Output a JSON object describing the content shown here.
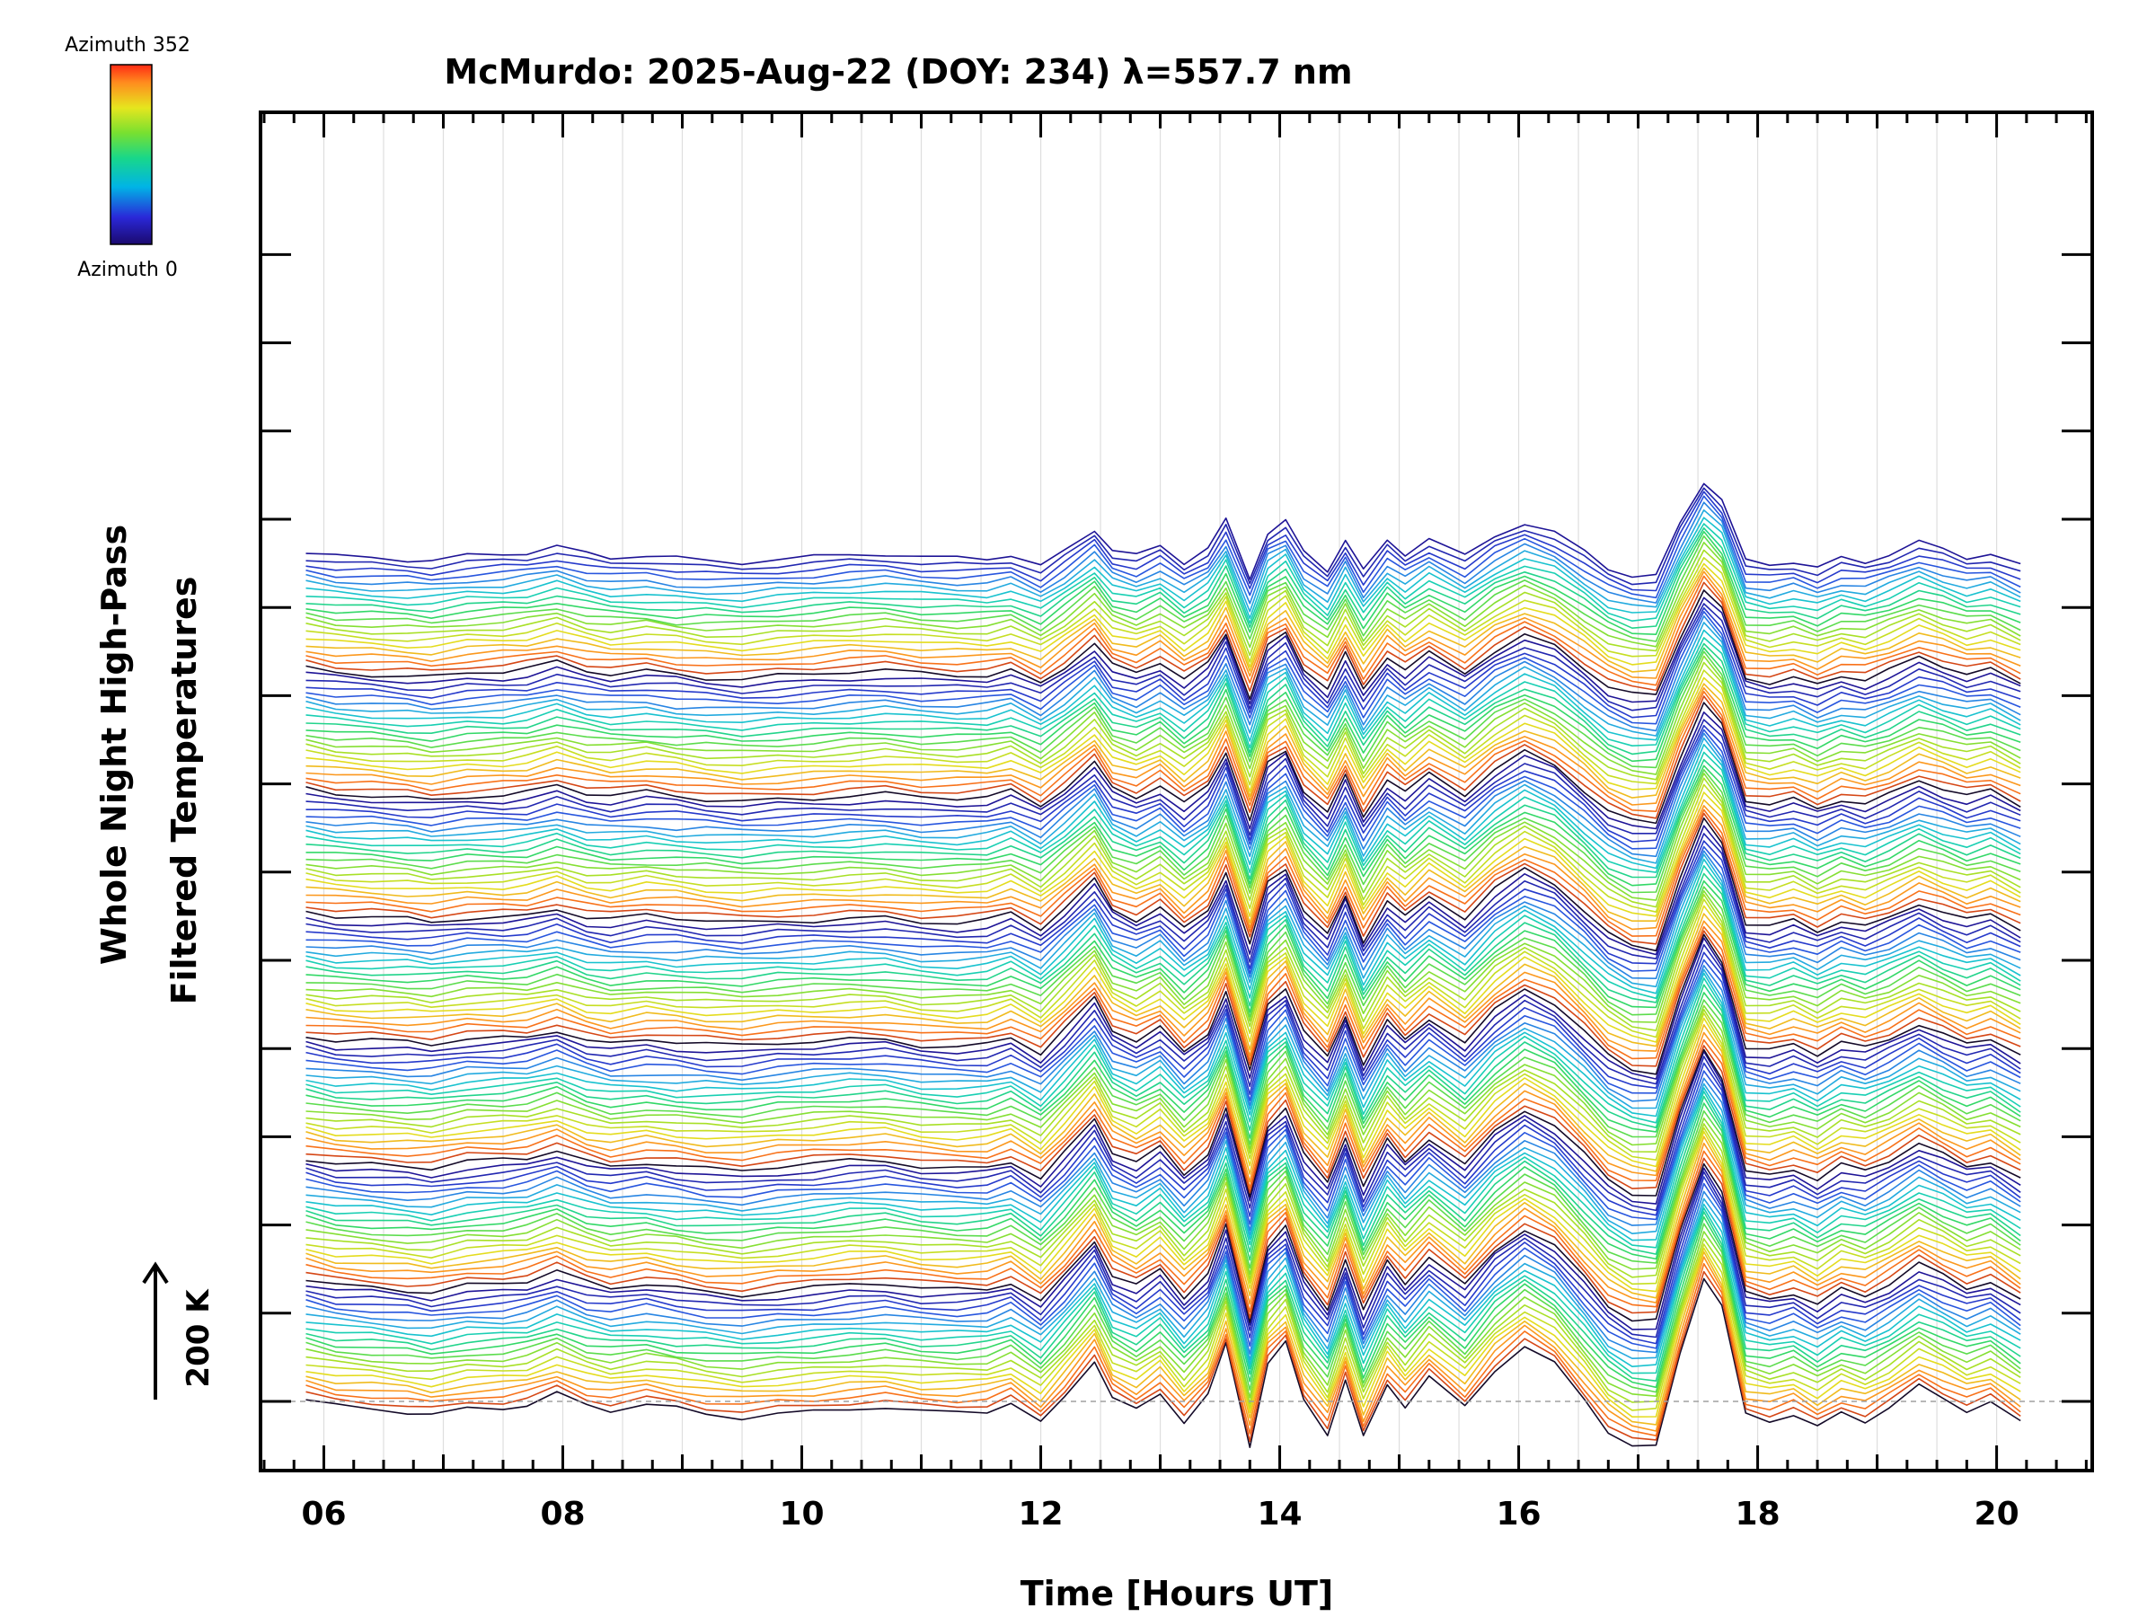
{
  "chart_data": {
    "type": "line",
    "title": "McMurdo: 2025-Aug-22 (DOY: 234) λ=557.7 nm",
    "xlabel": "Time [Hours UT]",
    "ylabel_line1": "Whole Night High-Pass",
    "ylabel_line2": "Filtered Temperatures",
    "xlim": [
      5.47,
      20.8
    ],
    "x_ticks": [
      6,
      8,
      10,
      12,
      14,
      16,
      18,
      20
    ],
    "x_tick_labels": [
      "06",
      "08",
      "10",
      "12",
      "14",
      "16",
      "18",
      "20"
    ],
    "legend": {
      "colorbar": "rainbow",
      "top_label": "Azimuth 352",
      "bottom_label": "Azimuth 0"
    },
    "scale_bar": {
      "label": "200 K"
    },
    "baseline_dashed": true,
    "stack_description": "Stacked traces, one per azimuth, grouped in bands of about 20 traces; common time profile shown below (K, relative, before stacking offset)",
    "profile": {
      "x": [
        5.85,
        6.1,
        6.4,
        6.7,
        6.9,
        7.2,
        7.5,
        7.7,
        7.95,
        8.2,
        8.4,
        8.7,
        8.95,
        9.2,
        9.5,
        9.8,
        10.1,
        10.4,
        10.7,
        11.0,
        11.3,
        11.55,
        11.75,
        12.0,
        12.2,
        12.45,
        12.6,
        12.8,
        13.0,
        13.2,
        13.4,
        13.55,
        13.75,
        13.9,
        14.05,
        14.2,
        14.4,
        14.55,
        14.7,
        14.9,
        15.05,
        15.25,
        15.55,
        15.8,
        16.05,
        16.3,
        16.55,
        16.75,
        16.95,
        17.15,
        17.35,
        17.55,
        17.7,
        17.9,
        18.1,
        18.3,
        18.5,
        18.7,
        18.9,
        19.1,
        19.35,
        19.55,
        19.75,
        19.95,
        20.2
      ],
      "y": [
        0,
        -12,
        -15,
        -20,
        -25,
        -12,
        -10,
        -5,
        15,
        -10,
        -20,
        -8,
        -16,
        -25,
        -30,
        -22,
        -18,
        -12,
        -10,
        -22,
        -25,
        -22,
        -5,
        -45,
        10,
        85,
        10,
        -15,
        18,
        -40,
        10,
        110,
        -90,
        75,
        115,
        5,
        -60,
        45,
        -70,
        35,
        -10,
        45,
        -15,
        60,
        110,
        75,
        5,
        -55,
        -85,
        -90,
        95,
        245,
        185,
        -30,
        -40,
        -25,
        -50,
        -20,
        -35,
        -10,
        30,
        5,
        -20,
        -5,
        -45
      ]
    },
    "bands": 7,
    "traces_per_band": 20
  }
}
